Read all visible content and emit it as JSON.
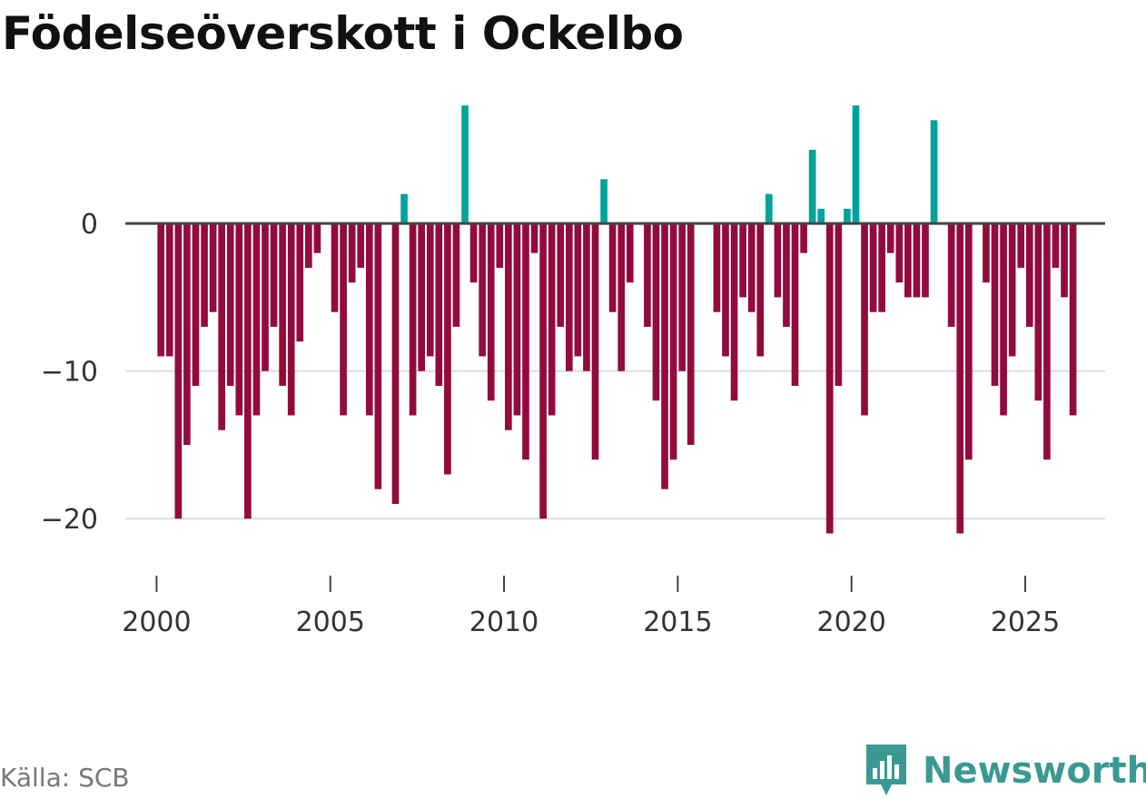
{
  "title": "Födelseöverskott i Ockelbo",
  "source": "Källa: SCB",
  "brand": {
    "name": "Newsworthy",
    "icon": "newsworthy-logo-icon",
    "color": "#3a9a93"
  },
  "colors": {
    "positive": "#00a39a",
    "negative": "#930a3e",
    "zero_line": "#444444",
    "grid": "#dddddd",
    "text": "#333333"
  },
  "chart_data": {
    "type": "bar",
    "title": "Födelseöverskott i Ockelbo",
    "xlabel": "",
    "ylabel": "",
    "xlim": [
      1999.1,
      2027.3
    ],
    "ylim": [
      -23,
      8.5
    ],
    "x_ticks": [
      2000,
      2005,
      2010,
      2015,
      2020,
      2025
    ],
    "y_ticks": [
      0,
      -10,
      -20
    ],
    "y_tick_labels": [
      "0",
      "−10",
      "−20"
    ],
    "grid": true,
    "legend": "none",
    "start_year": 2000,
    "periods_per_year": 4,
    "values": [
      -9,
      -9,
      -20,
      -15,
      -11,
      -7,
      -6,
      -14,
      -11,
      -13,
      -20,
      -13,
      -10,
      -7,
      -11,
      -13,
      -8,
      -3,
      -2,
      0,
      -6,
      -13,
      -4,
      -3,
      -13,
      -18,
      0,
      -19,
      2,
      -13,
      -10,
      -9,
      -11,
      -17,
      -7,
      8,
      -4,
      -9,
      -12,
      -3,
      -14,
      -13,
      -16,
      -2,
      -20,
      -13,
      -7,
      -10,
      -9,
      -10,
      -16,
      3,
      -6,
      -10,
      -4,
      0,
      -7,
      -12,
      -18,
      -16,
      -10,
      -15,
      0,
      0,
      -6,
      -9,
      -12,
      -5,
      -6,
      -9,
      2,
      -5,
      -7,
      -11,
      -2,
      5,
      1,
      -21,
      -11,
      1,
      8,
      -13,
      -6,
      -6,
      -2,
      -4,
      -5,
      -5,
      -5,
      7,
      0,
      -7,
      -21,
      -16,
      0,
      -4,
      -11,
      -13,
      -9,
      -3,
      -7,
      -12,
      -16,
      -3,
      -5,
      -13
    ]
  }
}
